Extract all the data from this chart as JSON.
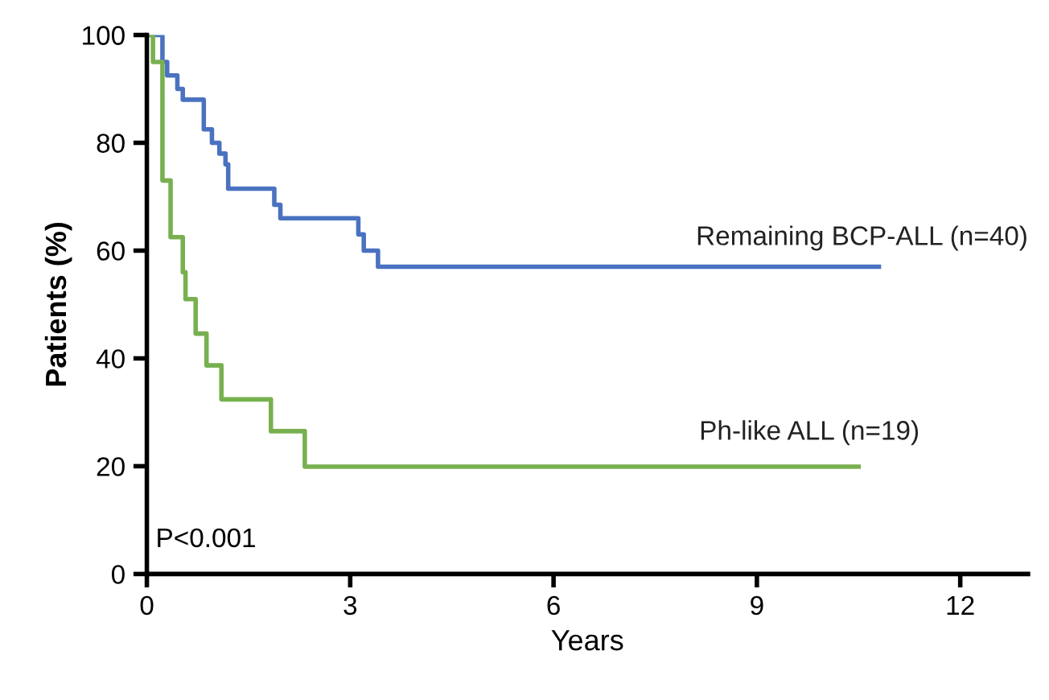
{
  "chart_data": {
    "type": "step",
    "xlabel": "Years",
    "ylabel": "Patients (%)",
    "xlim": [
      0,
      13
    ],
    "xticks": [
      0,
      3,
      6,
      9,
      12
    ],
    "ylim": [
      0,
      100
    ],
    "yticks": [
      0,
      20,
      40,
      60,
      80,
      100
    ],
    "grid": false,
    "legend": false,
    "annotations": [
      "P<0.001"
    ],
    "series": [
      {
        "name": "Remaining BCP-ALL (n=40)",
        "color": "#4a72c0",
        "x": [
          0,
          0.23,
          0.3,
          0.45,
          0.53,
          0.84,
          0.96,
          1.07,
          1.16,
          1.2,
          1.88,
          1.97,
          3.12,
          3.2,
          3.41,
          10.8
        ],
        "values": [
          100,
          95,
          92.5,
          90,
          88,
          82.5,
          80,
          78,
          76,
          71.5,
          68.5,
          66,
          63,
          60,
          57,
          57
        ]
      },
      {
        "name": "Ph-like ALL (n=19)",
        "color": "#78b050",
        "x": [
          0,
          0.09,
          0.23,
          0.35,
          0.53,
          0.57,
          0.72,
          0.88,
          1.1,
          1.83,
          2.33,
          10.5
        ],
        "values": [
          100,
          95,
          73,
          62.5,
          56,
          51,
          44.6,
          38.7,
          32.4,
          26.5,
          19.9,
          19.9
        ]
      }
    ]
  }
}
